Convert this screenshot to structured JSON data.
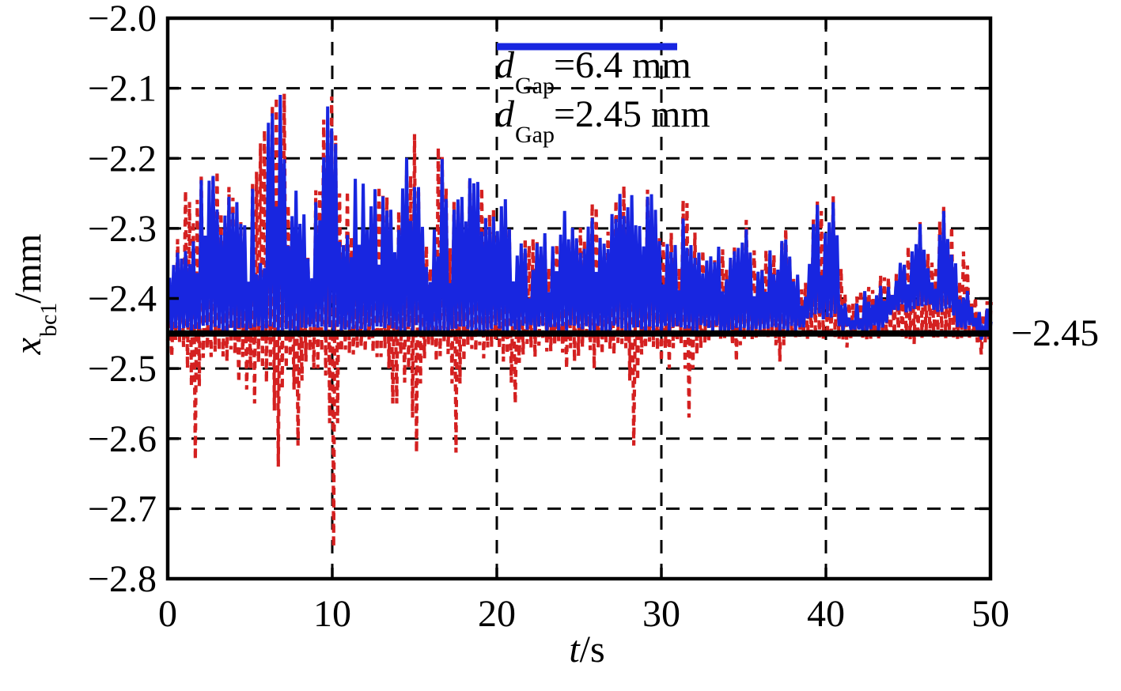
{
  "figure": {
    "background": "#ffffff",
    "frame_color": "#000000"
  },
  "chart_data": {
    "type": "line",
    "title": "",
    "xlabel_var": "t",
    "xlabel_rest": "/s",
    "ylabel_var": "x",
    "ylabel_sub": "bc1",
    "ylabel_rest": "/mm",
    "xlim": [
      0,
      50
    ],
    "ylim": [
      -2.8,
      -2.0
    ],
    "xticks": [
      {
        "v": 0,
        "label": "0"
      },
      {
        "v": 10,
        "label": "10"
      },
      {
        "v": 20,
        "label": "20"
      },
      {
        "v": 30,
        "label": "30"
      },
      {
        "v": 40,
        "label": "40"
      },
      {
        "v": 50,
        "label": "50"
      }
    ],
    "yticks": [
      {
        "v": -2.0,
        "label": "−2.0"
      },
      {
        "v": -2.1,
        "label": "−2.1"
      },
      {
        "v": -2.2,
        "label": "−2.2"
      },
      {
        "v": -2.3,
        "label": "−2.3"
      },
      {
        "v": -2.4,
        "label": "−2.4"
      },
      {
        "v": -2.5,
        "label": "−2.5"
      },
      {
        "v": -2.6,
        "label": "−2.6"
      },
      {
        "v": -2.7,
        "label": "−2.7"
      },
      {
        "v": -2.8,
        "label": "−2.8"
      }
    ],
    "grid": {
      "style": "dashed",
      "color": "#000000",
      "x_at": [
        10,
        20,
        30,
        40
      ],
      "y_at": [
        -2.1,
        -2.2,
        -2.3,
        -2.4,
        -2.5,
        -2.6,
        -2.7
      ]
    },
    "reference_line": {
      "v": -2.45,
      "label": "−2.45",
      "color": "#000000"
    },
    "legend_position": "top-center, no border",
    "envelope_t_step": 0.5,
    "upper_envelope": [
      -2.38,
      -2.34,
      -2.25,
      -2.26,
      -2.23,
      -2.23,
      -2.22,
      -2.24,
      -2.25,
      -2.28,
      -2.26,
      -2.2,
      -2.15,
      -2.1,
      -2.085,
      -2.25,
      -2.24,
      -2.28,
      -2.2,
      -2.13,
      -2.09,
      -2.27,
      -2.22,
      -2.23,
      -2.22,
      -2.24,
      -2.25,
      -2.27,
      -2.29,
      -2.2,
      -2.17,
      -2.3,
      -2.35,
      -2.17,
      -2.25,
      -2.26,
      -2.25,
      -2.22,
      -2.24,
      -2.29,
      -2.27,
      -2.235,
      -2.36,
      -2.3,
      -2.33,
      -2.31,
      -2.3,
      -2.31,
      -2.27,
      -2.29,
      -2.31,
      -2.29,
      -2.26,
      -2.27,
      -2.26,
      -2.23,
      -2.26,
      -2.24,
      -2.25,
      -2.25,
      -2.33,
      -2.31,
      -2.33,
      -2.22,
      -2.31,
      -2.33,
      -2.34,
      -2.32,
      -2.35,
      -2.33,
      -2.28,
      -2.33,
      -2.36,
      -2.33,
      -2.33,
      -2.3,
      -2.36,
      -2.37,
      -2.35,
      -2.23,
      -2.27,
      -2.26,
      -2.38,
      -2.42,
      -2.4,
      -2.38,
      -2.4,
      -2.36,
      -2.39,
      -2.35,
      -2.33,
      -2.3,
      -2.28,
      -2.36,
      -2.28,
      -2.26,
      -2.35,
      -2.33,
      -2.4,
      -2.43,
      -2.4
    ],
    "lower_envelope": [
      -2.45,
      -2.45,
      -2.45,
      -2.45,
      -2.45,
      -2.45,
      -2.45,
      -2.45,
      -2.45,
      -2.45,
      -2.45,
      -2.45,
      -2.45,
      -2.45,
      -2.45,
      -2.45,
      -2.45,
      -2.45,
      -2.45,
      -2.45,
      -2.45,
      -2.45,
      -2.45,
      -2.45,
      -2.45,
      -2.45,
      -2.45,
      -2.45,
      -2.45,
      -2.45,
      -2.45,
      -2.45,
      -2.45,
      -2.45,
      -2.45,
      -2.45,
      -2.45,
      -2.45,
      -2.45,
      -2.45,
      -2.45,
      -2.45,
      -2.45,
      -2.45,
      -2.45,
      -2.45,
      -2.45,
      -2.45,
      -2.45,
      -2.45,
      -2.45,
      -2.45,
      -2.45,
      -2.45,
      -2.45,
      -2.45,
      -2.45,
      -2.45,
      -2.45,
      -2.45,
      -2.45,
      -2.45,
      -2.45,
      -2.45,
      -2.45,
      -2.45,
      -2.45,
      -2.45,
      -2.45,
      -2.45,
      -2.45,
      -2.45,
      -2.45,
      -2.45,
      -2.45,
      -2.45,
      -2.45,
      -2.45,
      -2.43,
      -2.43,
      -2.43,
      -2.43,
      -2.45,
      -2.45,
      -2.45,
      -2.45,
      -2.45,
      -2.45,
      -2.42,
      -2.42,
      -2.42,
      -2.42,
      -2.42,
      -2.42,
      -2.42,
      -2.42,
      -2.45,
      -2.45,
      -2.45,
      -2.465,
      -2.45
    ],
    "series": [
      {
        "name": "dGap=6.4 mm",
        "label_var": "d",
        "label_sub": "Gap",
        "label_rest": "=6.4 mm",
        "color": "#d42020",
        "line_style": "dashed",
        "upper_cap_offset": 0.008,
        "below_line_dips": [
          [
            1.3,
            -2.5
          ],
          [
            1.6,
            -2.63
          ],
          [
            2.0,
            -2.5
          ],
          [
            2.8,
            -2.47
          ],
          [
            3.6,
            -2.49
          ],
          [
            4.3,
            -2.52
          ],
          [
            4.7,
            -2.53
          ],
          [
            5.0,
            -2.5
          ],
          [
            5.3,
            -2.55
          ],
          [
            5.7,
            -2.5
          ],
          [
            6.1,
            -2.52
          ],
          [
            6.5,
            -2.56
          ],
          [
            6.8,
            -2.64
          ],
          [
            7.3,
            -2.5
          ],
          [
            7.7,
            -2.53
          ],
          [
            8.0,
            -2.61
          ],
          [
            8.4,
            -2.49
          ],
          [
            9.0,
            -2.5
          ],
          [
            9.5,
            -2.51
          ],
          [
            10.0,
            -2.755
          ],
          [
            10.4,
            -2.47
          ],
          [
            11.3,
            -2.48
          ],
          [
            12.1,
            -2.47
          ],
          [
            13.4,
            -2.5
          ],
          [
            13.8,
            -2.55
          ],
          [
            14.3,
            -2.52
          ],
          [
            14.8,
            -2.57
          ],
          [
            15.1,
            -2.62
          ],
          [
            15.6,
            -2.48
          ],
          [
            16.4,
            -2.49
          ],
          [
            17.3,
            -2.5
          ],
          [
            17.6,
            -2.62
          ],
          [
            18.0,
            -2.49
          ],
          [
            19.5,
            -2.47
          ],
          [
            20.3,
            -2.49
          ],
          [
            20.8,
            -2.52
          ],
          [
            21.2,
            -2.55
          ],
          [
            21.5,
            -2.48
          ],
          [
            22.4,
            -2.47
          ],
          [
            24.3,
            -2.5
          ],
          [
            24.8,
            -2.49
          ],
          [
            25.3,
            -2.47
          ],
          [
            26.0,
            -2.5
          ],
          [
            26.5,
            -2.48
          ],
          [
            27.2,
            -2.48
          ],
          [
            28.3,
            -2.61
          ],
          [
            28.7,
            -2.48
          ],
          [
            30.0,
            -2.49
          ],
          [
            30.4,
            -2.5
          ],
          [
            31.7,
            -2.57
          ],
          [
            32.1,
            -2.48
          ],
          [
            34.6,
            -2.49
          ],
          [
            37.3,
            -2.49
          ],
          [
            41.2,
            -2.47
          ],
          [
            45.3,
            -2.465
          ],
          [
            49.4,
            -2.48
          ]
        ]
      },
      {
        "name": "dGap=2.45 mm",
        "label_var": "d",
        "label_sub": "Gap",
        "label_rest": "=2.45 mm",
        "color": "#1826e0",
        "line_style": "solid",
        "clip_min": -2.45
      }
    ]
  }
}
